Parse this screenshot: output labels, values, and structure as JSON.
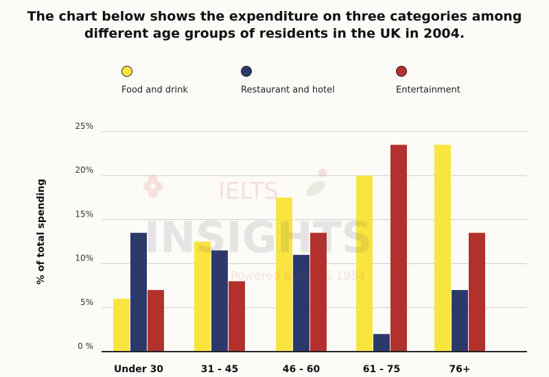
{
  "title": "The chart below shows the expenditure on three categories among different age groups of residents in the UK in 2004.",
  "watermark": {
    "brand_top": "IELTS",
    "brand_main": "INSIGHTS",
    "powered": "Powered by IELTS 1984"
  },
  "colors": {
    "food": "#f9e440",
    "restaurant": "#2c3a6b",
    "entertainment": "#b3312d",
    "axis": "#222222",
    "grid": "#cccccc"
  },
  "chart_data": {
    "type": "bar",
    "ylabel": "% of total spending",
    "ylim": [
      0,
      25
    ],
    "yticks": [
      "0 %",
      "5%",
      "10%",
      "15%",
      "20%",
      "25%"
    ],
    "grid": true,
    "legend_position": "top",
    "categories": [
      "Under 30",
      "31 - 45",
      "46 - 60",
      "61 - 75",
      "76+"
    ],
    "series": [
      {
        "name": "Food and drink",
        "values": [
          6,
          12.5,
          17.5,
          20,
          23.5
        ]
      },
      {
        "name": "Restaurant and hotel",
        "values": [
          13.5,
          11.5,
          11,
          2,
          7
        ]
      },
      {
        "name": "Entertainment",
        "values": [
          7,
          8,
          13.5,
          23.5,
          13.5
        ]
      }
    ]
  }
}
